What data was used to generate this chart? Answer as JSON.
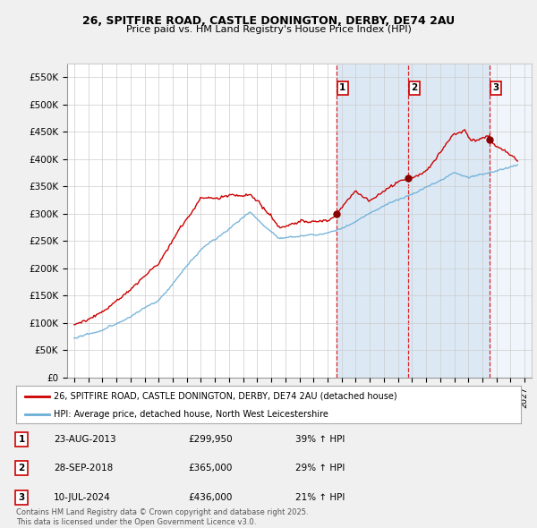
{
  "title_line1": "26, SPITFIRE ROAD, CASTLE DONINGTON, DERBY, DE74 2AU",
  "title_line2": "Price paid vs. HM Land Registry's House Price Index (HPI)",
  "legend_line1": "26, SPITFIRE ROAD, CASTLE DONINGTON, DERBY, DE74 2AU (detached house)",
  "legend_line2": "HPI: Average price, detached house, North West Leicestershire",
  "footer": "Contains HM Land Registry data © Crown copyright and database right 2025.\nThis data is licensed under the Open Government Licence v3.0.",
  "transactions": [
    {
      "label": "1",
      "date": "23-AUG-2013",
      "price": 299950,
      "hpi_pct": "39%",
      "x": 2013.64
    },
    {
      "label": "2",
      "date": "28-SEP-2018",
      "price": 365000,
      "hpi_pct": "29%",
      "x": 2018.74
    },
    {
      "label": "3",
      "date": "10-JUL-2024",
      "price": 436000,
      "hpi_pct": "21%",
      "x": 2024.52
    }
  ],
  "ylim": [
    0,
    575000
  ],
  "xlim": [
    1994.5,
    2027.5
  ],
  "yticks": [
    0,
    50000,
    100000,
    150000,
    200000,
    250000,
    300000,
    350000,
    400000,
    450000,
    500000,
    550000
  ],
  "ytick_labels": [
    "£0",
    "£50K",
    "£100K",
    "£150K",
    "£200K",
    "£250K",
    "£300K",
    "£350K",
    "£400K",
    "£450K",
    "£500K",
    "£550K"
  ],
  "hpi_color": "#6baed6",
  "price_color": "#cc0000",
  "bg_color": "#f0f0f0",
  "plot_bg": "#ffffff",
  "grid_color": "#cccccc",
  "highlight_color": "#dce9f5",
  "highlight_color2": "#e8e8f8"
}
